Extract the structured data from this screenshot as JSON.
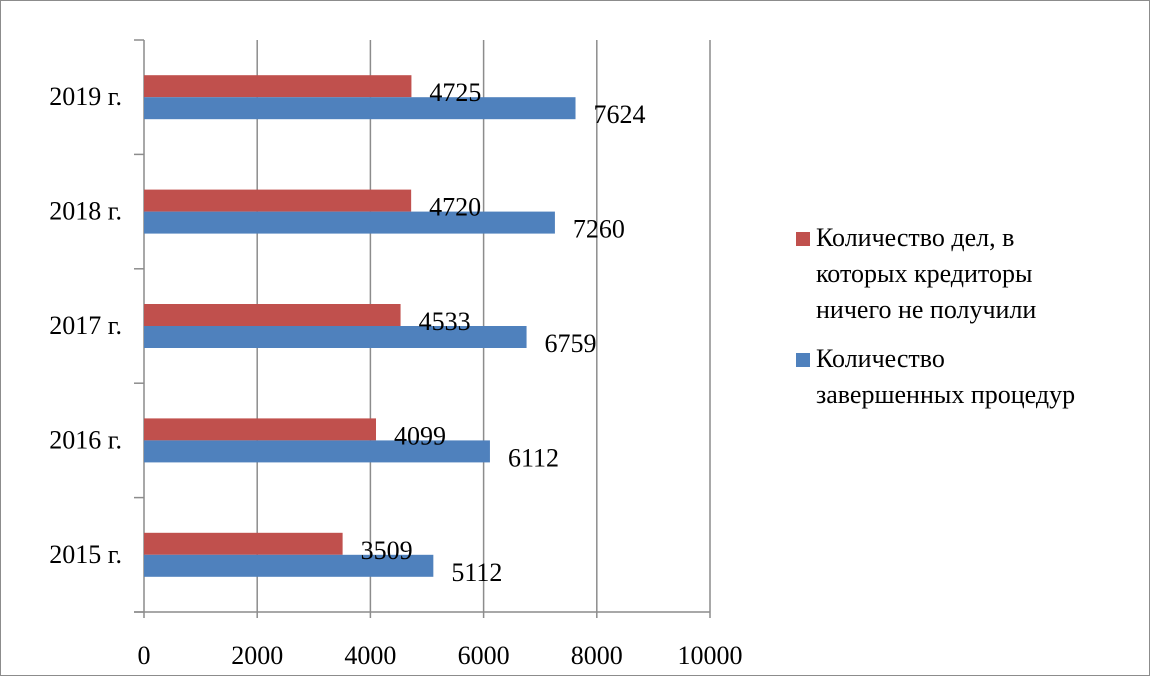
{
  "chart_data": {
    "type": "bar",
    "orientation": "horizontal",
    "categories": [
      "2015 г.",
      "2016 г.",
      "2017 г.",
      "2018 г.",
      "2019 г."
    ],
    "series": [
      {
        "name": "Количество завершенных процедур",
        "color": "#4f81bd",
        "values": [
          5112,
          6112,
          6759,
          7260,
          7624
        ]
      },
      {
        "name": "Количество дел, в которых кредиторы ничего не получили",
        "color": "#c0504d",
        "values": [
          3509,
          4099,
          4533,
          4720,
          4725
        ]
      }
    ],
    "xlim": [
      0,
      10000
    ],
    "xticks": [
      "0",
      "2000",
      "4000",
      "6000",
      "8000",
      "10000"
    ],
    "grid": true,
    "legend": "right",
    "legend_lines": [
      [
        "Количество дел, в",
        "которых кредиторы",
        "ничего не получили"
      ],
      [
        "Количество",
        "завершенных процедур"
      ]
    ]
  }
}
